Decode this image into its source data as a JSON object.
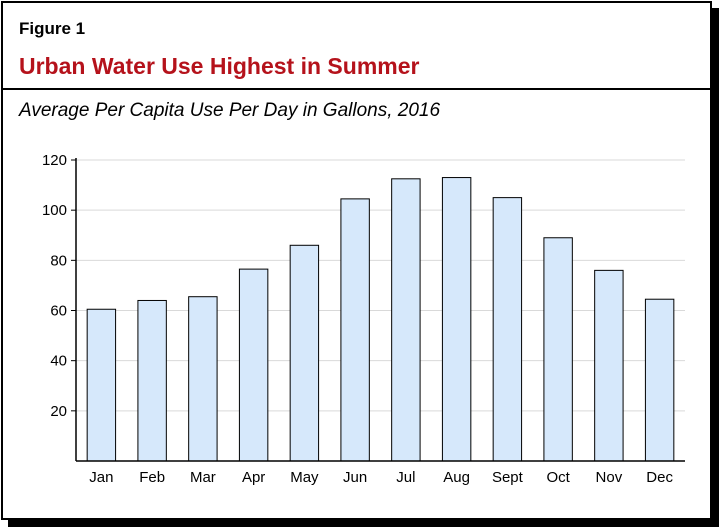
{
  "figure_label": "Figure 1",
  "title": "Urban Water Use Highest in Summer",
  "subtitle": "Average Per Capita Use Per Day in Gallons, 2016",
  "colors": {
    "title": "#b5121b",
    "bar_fill": "#d6e8fb",
    "bar_stroke": "#000000",
    "gridline": "#d9d9d9"
  },
  "chart_data": {
    "type": "bar",
    "title": "Urban Water Use Highest in Summer",
    "subtitle": "Average Per Capita Use Per Day in Gallons, 2016",
    "xlabel": "",
    "ylabel": "",
    "categories": [
      "Jan",
      "Feb",
      "Mar",
      "Apr",
      "May",
      "Jun",
      "Jul",
      "Aug",
      "Sept",
      "Oct",
      "Nov",
      "Dec"
    ],
    "values": [
      60.5,
      64,
      65.5,
      76.5,
      86,
      104.5,
      112.5,
      113,
      105,
      89,
      76,
      64.5
    ],
    "ylim": [
      0,
      120
    ],
    "yticks": [
      20,
      40,
      60,
      80,
      100,
      120
    ],
    "grid": true,
    "legend": "none"
  }
}
